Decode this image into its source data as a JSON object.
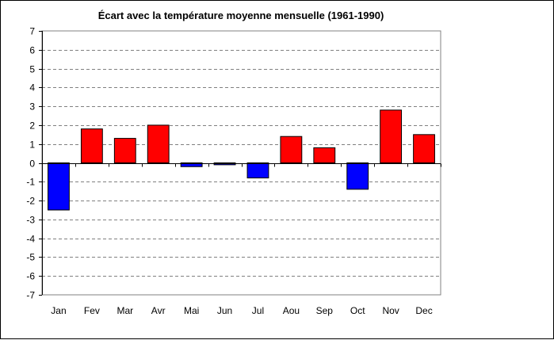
{
  "chart_data": {
    "type": "bar",
    "title": "Écart avec la température moyenne mensuelle (1961-1990)",
    "xlabel": "",
    "ylabel": "",
    "categories": [
      "Jan",
      "Fev",
      "Mar",
      "Avr",
      "Mai",
      "Jun",
      "Jul",
      "Aou",
      "Sep",
      "Oct",
      "Nov",
      "Dec"
    ],
    "values": [
      -2.5,
      1.8,
      1.3,
      2.0,
      -0.2,
      -0.1,
      -0.8,
      1.4,
      0.8,
      -1.4,
      2.8,
      1.5
    ],
    "ylim": [
      -7,
      7
    ],
    "yticks": [
      "-7",
      "-6",
      "-5",
      "-4",
      "-3",
      "-2",
      "-1",
      "0",
      "1",
      "2",
      "3",
      "4",
      "5",
      "6",
      "7"
    ],
    "grid": true,
    "legend": "none",
    "colors": {
      "positive": "#ff0000",
      "negative": "#0000ff",
      "grid": "#808080",
      "axis": "#000000"
    }
  }
}
